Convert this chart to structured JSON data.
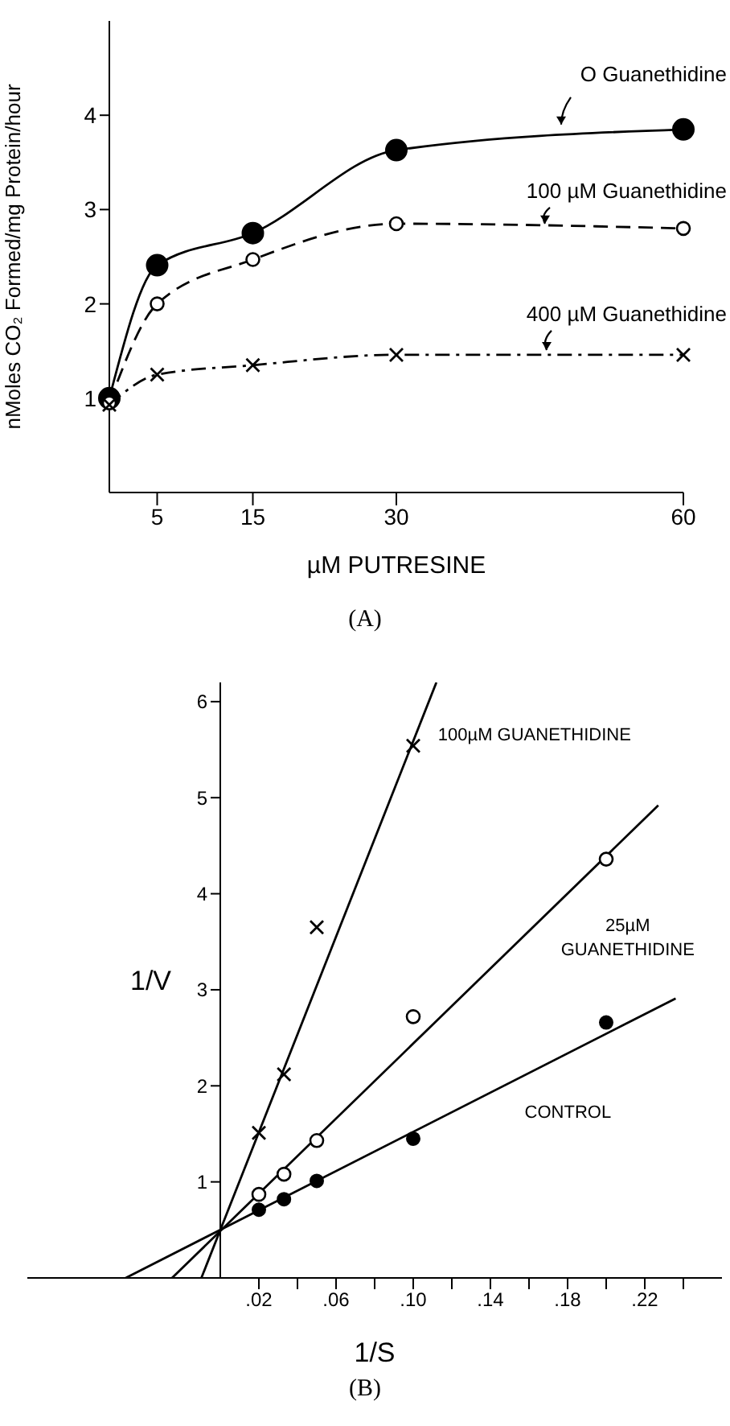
{
  "chart_data": [
    {
      "type": "line",
      "xlabel": "µM PUTRESINE",
      "ylabel": "nMoles CO₂ Formed/mg Protein/hour",
      "annotations": [
        "(A)"
      ],
      "x": [
        0,
        5,
        15,
        30,
        60
      ],
      "xlim": [
        0,
        60
      ],
      "xticks": [
        5,
        15,
        30,
        60
      ],
      "ylim": [
        0,
        5
      ],
      "yticks": [
        1,
        2,
        3,
        4
      ],
      "series": [
        {
          "name": "O Guanethidine",
          "color": "#000000",
          "marker": "circle",
          "line_style": "solid",
          "values": [
            1.0,
            2.41,
            2.75,
            3.63,
            3.85
          ]
        },
        {
          "name": "100 µM Guanethidine",
          "color": "#000000",
          "marker": "circle-open",
          "line_style": "dashed",
          "values": [
            0.95,
            2.0,
            2.47,
            2.85,
            2.8
          ]
        },
        {
          "name": "400 µM Guanethidine",
          "color": "#000000",
          "marker": "cross",
          "line_style": "dashdot",
          "values": [
            0.93,
            1.25,
            1.35,
            1.46,
            1.46
          ]
        }
      ]
    },
    {
      "type": "scatter",
      "xlabel": "1/S",
      "ylabel": "1/V",
      "annotations": [
        "(B)"
      ],
      "xlim": [
        -0.1,
        0.26
      ],
      "xticks": [
        {
          "value": 0.02,
          "label": ".02"
        },
        {
          "value": 0.04,
          "label": null
        },
        {
          "value": 0.06,
          "label": ".06"
        },
        {
          "value": 0.08,
          "label": null
        },
        {
          "value": 0.1,
          "label": ".10"
        },
        {
          "value": 0.12,
          "label": null
        },
        {
          "value": 0.14,
          "label": ".14"
        },
        {
          "value": 0.16,
          "label": null
        },
        {
          "value": 0.18,
          "label": ".18"
        },
        {
          "value": 0.2,
          "label": null
        },
        {
          "value": 0.22,
          "label": ".22"
        },
        {
          "value": 0.24,
          "label": null
        }
      ],
      "ylim": [
        0,
        6.2
      ],
      "yticks": [
        1,
        2,
        3,
        4,
        5,
        6
      ],
      "series": [
        {
          "type": "scatter",
          "color": "#000000",
          "marker": "cross",
          "x": [
            0.02,
            0.033,
            0.05,
            0.1
          ],
          "values": [
            1.51,
            2.12,
            3.65,
            5.54
          ]
        },
        {
          "type": "scatter",
          "color": "#000000",
          "marker": "circle-open",
          "x": [
            0.02,
            0.033,
            0.05,
            0.1,
            0.2
          ],
          "values": [
            0.87,
            1.08,
            1.43,
            2.72,
            4.36
          ]
        },
        {
          "type": "scatter",
          "color": "#000000",
          "marker": "circle",
          "x": [
            0.02,
            0.033,
            0.05,
            0.1,
            0.2
          ],
          "values": [
            0.71,
            0.82,
            1.01,
            1.45,
            2.66
          ]
        },
        {
          "type": "line",
          "name": "100µM GUANETHIDINE",
          "color": "#000000",
          "marker": "none",
          "line_style": "solid",
          "x": [
            -0.0098,
            0.112
          ],
          "values": [
            0,
            6.2
          ]
        },
        {
          "type": "line",
          "name": "25µM GUANETHIDINE",
          "color": "#000000",
          "marker": "none",
          "line_style": "solid",
          "x": [
            -0.025,
            0.227
          ],
          "values": [
            0,
            4.92
          ]
        },
        {
          "type": "line",
          "name": "CONTROL",
          "color": "#000000",
          "marker": "none",
          "line_style": "solid",
          "x": [
            -0.049,
            0.236
          ],
          "values": [
            0,
            2.91
          ]
        }
      ]
    }
  ]
}
